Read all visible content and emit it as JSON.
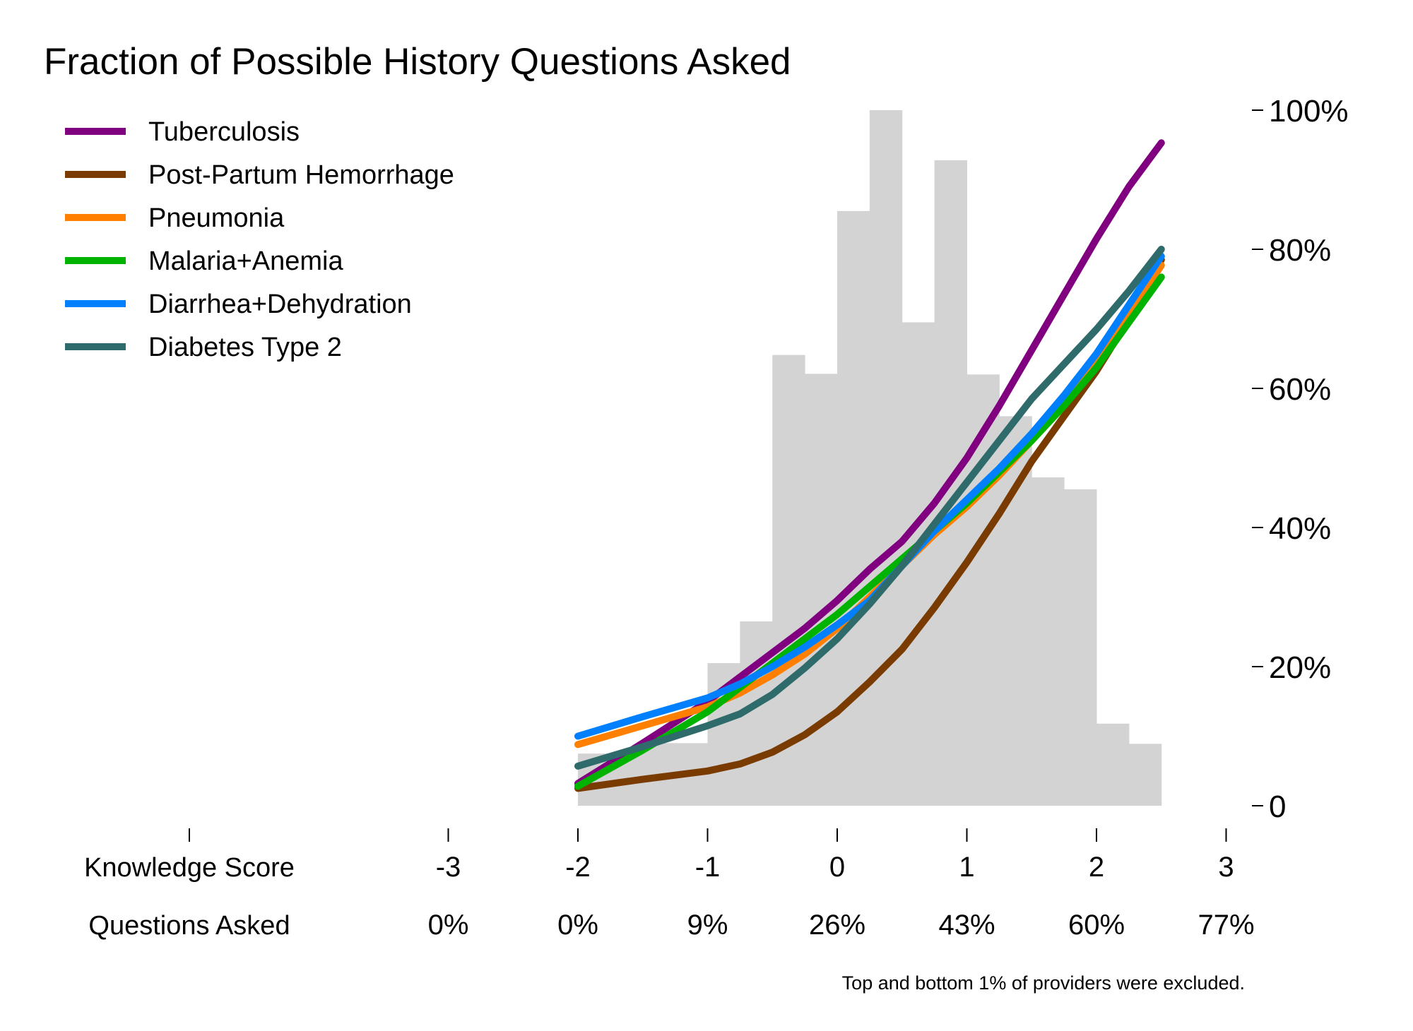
{
  "chart_data": {
    "type": "line",
    "title": "Fraction of Possible History Questions Asked",
    "footnote": "Top and bottom 1% of providers were excluded.",
    "x_axis": {
      "row_labels": [
        "Knowledge Score",
        "Questions Asked"
      ],
      "range": [
        -3,
        3
      ],
      "ticks": [
        -3,
        -2,
        -1,
        0,
        1,
        2,
        3
      ],
      "tick_labels": [
        "-3",
        "-2",
        "-1",
        "0",
        "1",
        "2",
        "3"
      ],
      "secondary_tick_labels": [
        "0%",
        "0%",
        "9%",
        "26%",
        "43%",
        "60%",
        "77%"
      ]
    },
    "y_axis": {
      "range": [
        0,
        100
      ],
      "ticks": [
        0,
        20,
        40,
        60,
        80,
        100
      ],
      "tick_labels": [
        "0",
        "20%",
        "40%",
        "60%",
        "80%",
        "100%"
      ]
    },
    "histogram": {
      "color": "#d3d3d3",
      "bins": [
        {
          "x0": -2.0,
          "x1": -1.75,
          "height": 7.5
        },
        {
          "x0": -1.75,
          "x1": -1.5,
          "height": 7.5
        },
        {
          "x0": -1.5,
          "x1": -1.25,
          "height": 9
        },
        {
          "x0": -1.25,
          "x1": -1.0,
          "height": 9
        },
        {
          "x0": -1.0,
          "x1": -0.75,
          "height": 20.5
        },
        {
          "x0": -0.75,
          "x1": -0.5,
          "height": 26.5
        },
        {
          "x0": -0.5,
          "x1": -0.25,
          "height": 64.8
        },
        {
          "x0": -0.25,
          "x1": 0.0,
          "height": 62.1
        },
        {
          "x0": 0.0,
          "x1": 0.25,
          "height": 85.5
        },
        {
          "x0": 0.25,
          "x1": 0.5,
          "height": 100
        },
        {
          "x0": 0.5,
          "x1": 0.75,
          "height": 69.5
        },
        {
          "x0": 0.75,
          "x1": 1.0,
          "height": 92.8
        },
        {
          "x0": 1.0,
          "x1": 1.25,
          "height": 62
        },
        {
          "x0": 1.25,
          "x1": 1.5,
          "height": 56
        },
        {
          "x0": 1.5,
          "x1": 1.75,
          "height": 47.2
        },
        {
          "x0": 1.75,
          "x1": 2.0,
          "height": 45.5
        },
        {
          "x0": 2.0,
          "x1": 2.25,
          "height": 11.8
        },
        {
          "x0": 2.25,
          "x1": 2.5,
          "height": 8.9
        }
      ]
    },
    "series": [
      {
        "name": "Tuberculosis",
        "color": "#800080",
        "x": [
          -2.0,
          -1.5,
          -1.0,
          -0.75,
          -0.5,
          -0.25,
          0.0,
          0.25,
          0.5,
          0.75,
          1.0,
          1.25,
          1.5,
          1.75,
          2.0,
          2.25,
          2.5
        ],
        "y": [
          3.2,
          9.0,
          15.0,
          18.5,
          22.0,
          25.5,
          29.5,
          34.0,
          38.0,
          43.5,
          50.0,
          57.5,
          65.5,
          73.5,
          81.5,
          89.0,
          95.3
        ]
      },
      {
        "name": "Post-Partum Hemorrhage",
        "color": "#7a3b00",
        "x": [
          -2.0,
          -1.5,
          -1.0,
          -0.75,
          -0.5,
          -0.25,
          0.0,
          0.25,
          0.5,
          0.75,
          1.0,
          1.25,
          1.5,
          1.75,
          2.0,
          2.25,
          2.5
        ],
        "y": [
          2.5,
          3.8,
          5.0,
          6.0,
          7.7,
          10.2,
          13.5,
          17.8,
          22.5,
          28.5,
          35.0,
          42.0,
          49.5,
          56.0,
          62.5,
          70.0,
          78.5
        ]
      },
      {
        "name": "Pneumonia",
        "color": "#ff8000",
        "x": [
          -2.0,
          -1.5,
          -1.0,
          -0.75,
          -0.5,
          -0.25,
          0.0,
          0.25,
          0.5,
          0.75,
          1.0,
          1.25,
          1.5,
          1.75,
          2.0,
          2.25,
          2.5
        ],
        "y": [
          8.8,
          11.5,
          14.2,
          16.2,
          18.8,
          21.8,
          25.5,
          30.0,
          34.5,
          39.0,
          43.0,
          47.5,
          52.5,
          57.5,
          63.5,
          70.5,
          77.7
        ]
      },
      {
        "name": "Malaria+Anemia",
        "color": "#00b300",
        "x": [
          -2.0,
          -1.5,
          -1.0,
          -0.75,
          -0.5,
          -0.25,
          0.0,
          0.25,
          0.5,
          0.75,
          1.0,
          1.25,
          1.5,
          1.75,
          2.0,
          2.25,
          2.5
        ],
        "y": [
          2.8,
          8.0,
          13.5,
          17.0,
          20.5,
          24.0,
          27.5,
          31.5,
          35.5,
          39.5,
          43.5,
          48.0,
          52.5,
          57.5,
          63.0,
          69.5,
          76.0
        ]
      },
      {
        "name": "Diarrhea+Dehydration",
        "color": "#0080ff",
        "x": [
          -2.0,
          -1.5,
          -1.0,
          -0.75,
          -0.5,
          -0.25,
          0.0,
          0.25,
          0.5,
          0.75,
          1.0,
          1.25,
          1.5,
          1.75,
          2.0,
          2.25,
          2.5
        ],
        "y": [
          10.0,
          12.8,
          15.5,
          17.5,
          20.0,
          22.8,
          26.0,
          29.5,
          34.5,
          39.5,
          44.0,
          48.5,
          53.5,
          59.0,
          65.0,
          72.0,
          79.0
        ]
      },
      {
        "name": "Diabetes Type 2",
        "color": "#2f6b6b",
        "x": [
          -2.0,
          -1.5,
          -1.0,
          -0.75,
          -0.5,
          -0.25,
          0.0,
          0.25,
          0.5,
          0.75,
          1.0,
          1.25,
          1.5,
          1.75,
          2.0,
          2.25,
          2.5
        ],
        "y": [
          5.7,
          8.5,
          11.5,
          13.2,
          16.0,
          19.8,
          24.0,
          29.0,
          34.5,
          40.5,
          46.5,
          52.5,
          58.5,
          63.5,
          68.5,
          74.0,
          80.0
        ]
      }
    ],
    "legend": "top-left",
    "grid": false
  }
}
